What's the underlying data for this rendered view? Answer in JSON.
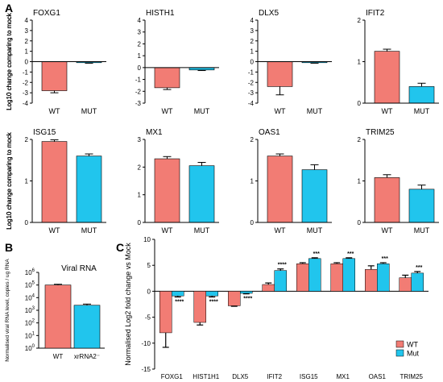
{
  "panels": {
    "a_label": "A",
    "b_label": "B",
    "c_label": "C"
  },
  "colors": {
    "wt": "#f27c74",
    "mut": "#21c5ed",
    "error_bar": "#000000"
  },
  "chart_data": [
    {
      "panel": "A",
      "type": "bar",
      "title": "FOXG1",
      "ylabel": "Log10 change comparing to mock",
      "categories": [
        "WT",
        "MUT"
      ],
      "values": [
        -2.8,
        -0.1
      ],
      "errors": [
        0.2,
        0.05
      ],
      "ylim": [
        -4,
        4
      ],
      "yticks": [
        "-4",
        "-3",
        "-2",
        "-1",
        "0",
        "1",
        "2",
        "3",
        "4"
      ],
      "ytick_values": [
        -4,
        -3,
        -2,
        -1,
        0,
        1,
        2,
        3,
        4
      ]
    },
    {
      "panel": "A",
      "type": "bar",
      "title": "HISTH1",
      "ylabel": "Log10 change comparing to mock",
      "categories": [
        "WT",
        "MUT"
      ],
      "values": [
        -1.7,
        -0.2
      ],
      "errors": [
        0.15,
        0.05
      ],
      "ylim": [
        -3,
        4
      ],
      "yticks": [
        "-3",
        "-2",
        "-1",
        "0",
        "1",
        "2",
        "3",
        "4"
      ],
      "ytick_values": [
        -3,
        -2,
        -1,
        0,
        1,
        2,
        3,
        4
      ]
    },
    {
      "panel": "A",
      "type": "bar",
      "title": "DLX5",
      "ylabel": "Log10 change comparing to mock",
      "categories": [
        "WT",
        "MUT"
      ],
      "values": [
        -2.4,
        -0.1
      ],
      "errors": [
        0.8,
        0.05
      ],
      "ylim": [
        -4,
        4
      ],
      "yticks": [
        "-4",
        "-3",
        "-2",
        "-1",
        "0",
        "1",
        "2",
        "3",
        "4"
      ],
      "ytick_values": [
        -4,
        -3,
        -2,
        -1,
        0,
        1,
        2,
        3,
        4
      ]
    },
    {
      "panel": "A",
      "type": "bar",
      "title": "IFIT2",
      "ylabel": "Log10 change comparing to mock",
      "categories": [
        "WT",
        "MUT"
      ],
      "values": [
        1.25,
        0.4
      ],
      "errors": [
        0.05,
        0.08
      ],
      "ylim": [
        0,
        2
      ],
      "yticks": [
        "0",
        "1",
        "2"
      ],
      "ytick_values": [
        0,
        1,
        2
      ]
    },
    {
      "panel": "A",
      "type": "bar",
      "title": "ISG15",
      "ylabel": "Log10 change comparing to mock",
      "categories": [
        "WT",
        "MUT"
      ],
      "values": [
        1.95,
        1.6
      ],
      "errors": [
        0.04,
        0.05
      ],
      "ylim": [
        0,
        2
      ],
      "yticks": [
        "0",
        "1",
        "2"
      ],
      "ytick_values": [
        0,
        1,
        2
      ]
    },
    {
      "panel": "A",
      "type": "bar",
      "title": "MX1",
      "ylabel": "Log10 change comparing to mock",
      "categories": [
        "WT",
        "MUT"
      ],
      "values": [
        2.3,
        2.05
      ],
      "errors": [
        0.08,
        0.12
      ],
      "ylim": [
        0,
        3
      ],
      "yticks": [
        "0",
        "1",
        "2",
        "3"
      ],
      "ytick_values": [
        0,
        1,
        2,
        3
      ]
    },
    {
      "panel": "A",
      "type": "bar",
      "title": "OAS1",
      "ylabel": "Log10 change comparing to mock",
      "categories": [
        "WT",
        "MUT"
      ],
      "values": [
        1.6,
        1.27
      ],
      "errors": [
        0.05,
        0.12
      ],
      "ylim": [
        0,
        2
      ],
      "yticks": [
        "0",
        "1",
        "2"
      ],
      "ytick_values": [
        0,
        1,
        2
      ]
    },
    {
      "panel": "A",
      "type": "bar",
      "title": "TRIM25",
      "ylabel": "Log10 change comparing to mock",
      "categories": [
        "WT",
        "MUT"
      ],
      "values": [
        1.08,
        0.8
      ],
      "errors": [
        0.07,
        0.1
      ],
      "ylim": [
        0,
        2
      ],
      "yticks": [
        "0",
        "1",
        "2"
      ],
      "ytick_values": [
        0,
        1,
        2
      ]
    },
    {
      "panel": "B",
      "type": "bar",
      "title": "Viral RNA",
      "ylabel": "Normalised viral RNA level, copies / ug RNA",
      "categories": [
        "WT",
        "xrRNA2⁻"
      ],
      "values": [
        100000,
        2500
      ],
      "errors_upper": [
        115000,
        3100
      ],
      "scale": "log",
      "ylim": [
        1,
        1000000
      ],
      "yticks": [
        {
          "base": "10",
          "exp": "0",
          "value": 1
        },
        {
          "base": "10",
          "exp": "1",
          "value": 10
        },
        {
          "base": "10",
          "exp": "2",
          "value": 100
        },
        {
          "base": "10",
          "exp": "3",
          "value": 1000
        },
        {
          "base": "10",
          "exp": "4",
          "value": 10000
        },
        {
          "base": "10",
          "exp": "5",
          "value": 100000
        },
        {
          "base": "10",
          "exp": "6",
          "value": 1000000
        }
      ]
    },
    {
      "panel": "C",
      "type": "bar",
      "ylabel": "Normalised Log2 fold change vs Mock",
      "categories": [
        "FOXG1",
        "HIST1H1",
        "DLX5",
        "IFIT2",
        "ISG15",
        "MX1",
        "OAS1",
        "TRIM25"
      ],
      "series": [
        {
          "name": "WT",
          "values": [
            -8.0,
            -6.0,
            -2.8,
            1.3,
            5.3,
            5.3,
            4.2,
            2.6
          ],
          "errors": [
            2.8,
            0.5,
            0.1,
            0.3,
            0.2,
            0.2,
            0.7,
            0.5
          ]
        },
        {
          "name": "Mut",
          "values": [
            -0.9,
            -0.9,
            -0.4,
            4.0,
            6.3,
            6.3,
            5.3,
            3.5
          ],
          "errors": [
            0.2,
            0.2,
            0.1,
            0.3,
            0.15,
            0.15,
            0.2,
            0.3
          ]
        }
      ],
      "significance": [
        "****",
        "****",
        "****",
        "****",
        "***",
        "***",
        "***",
        "***"
      ],
      "ylim": [
        -15,
        10
      ],
      "yticks": [
        "-15",
        "-10",
        "-5",
        "0",
        "5",
        "10"
      ],
      "ytick_values": [
        -15,
        -10,
        -5,
        0,
        5,
        10
      ],
      "legend": {
        "position": "bottom-right",
        "entries": [
          "WT",
          "Mut"
        ]
      }
    }
  ]
}
